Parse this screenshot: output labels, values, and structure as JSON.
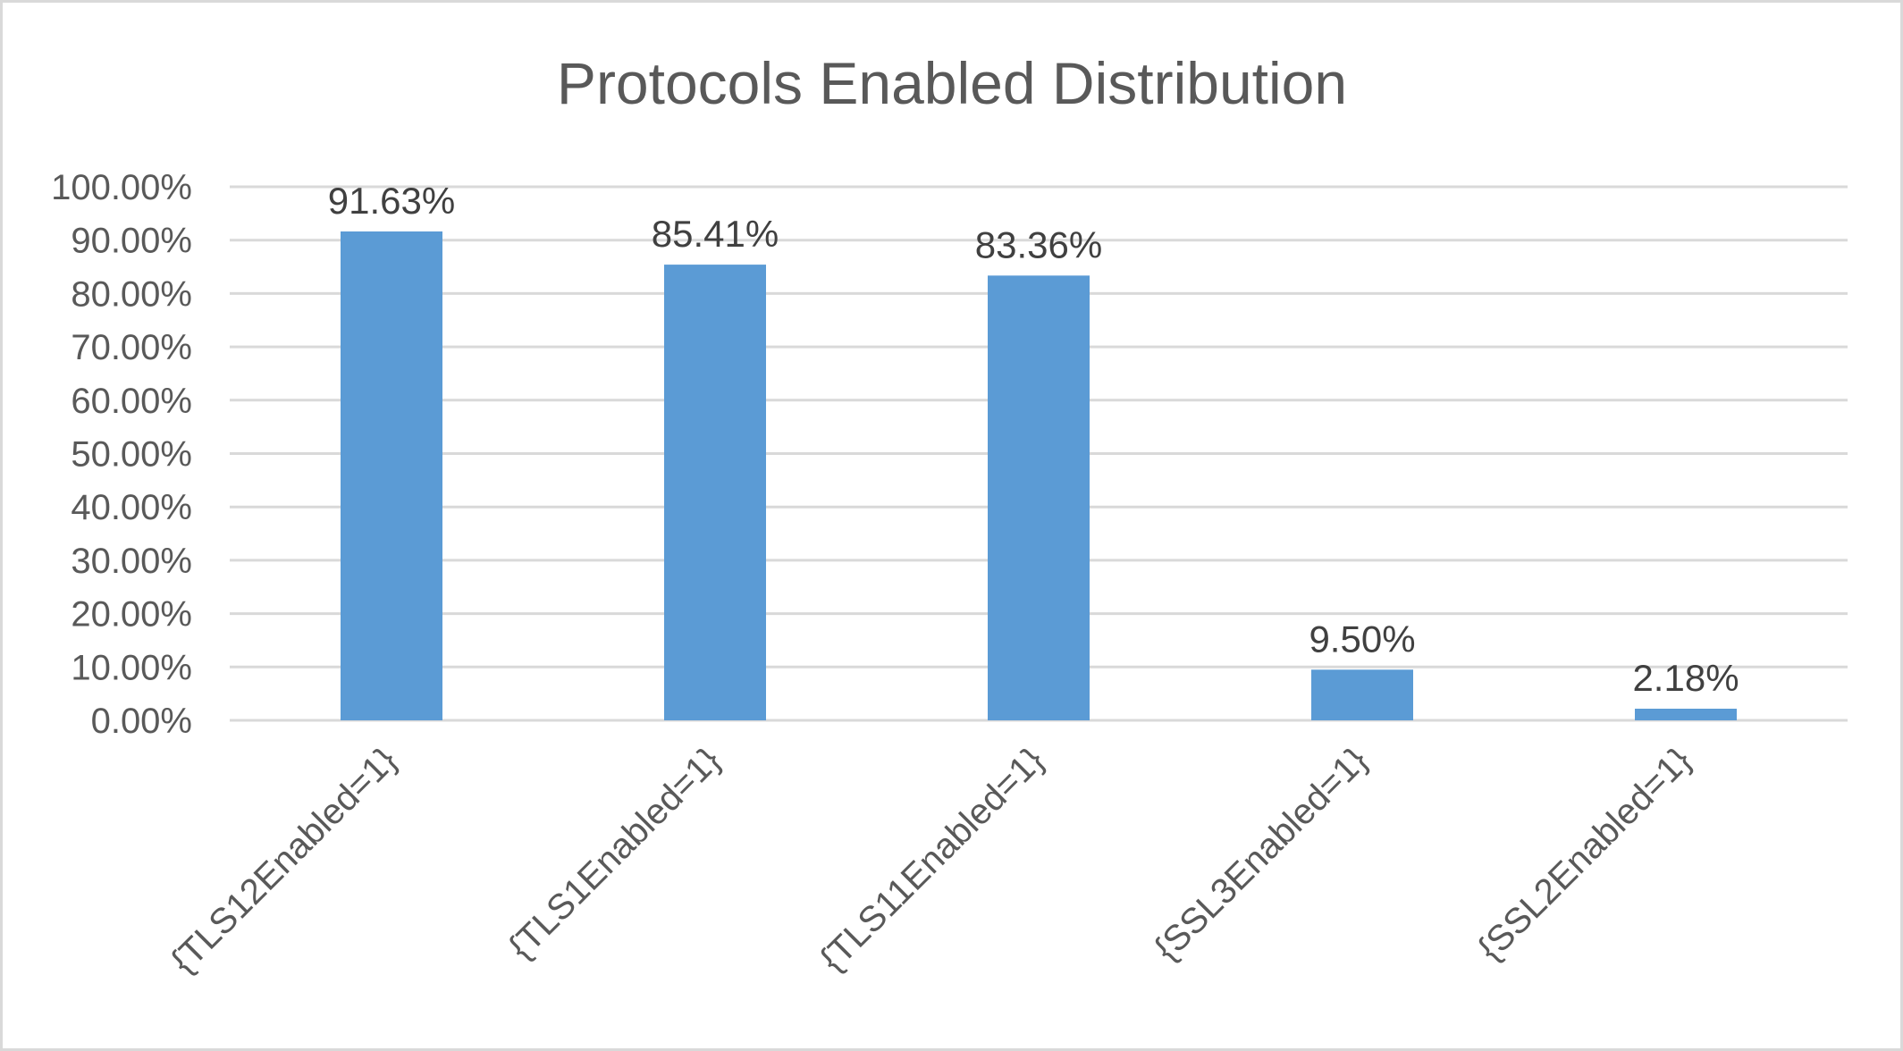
{
  "chart_data": {
    "type": "bar",
    "title": "Protocols Enabled Distribution",
    "categories": [
      "{TLS12Enabled=1}",
      "{TLS1Enabled=1}",
      "{TLS11Enabled=1}",
      "{SSL3Enabled=1}",
      "{SSL2Enabled=1}"
    ],
    "values": [
      91.63,
      85.41,
      83.36,
      9.5,
      2.18
    ],
    "data_labels": [
      "91.63%",
      "85.41%",
      "83.36%",
      "9.50%",
      "2.18%"
    ],
    "y_ticks": [
      "0.00%",
      "10.00%",
      "20.00%",
      "30.00%",
      "40.00%",
      "50.00%",
      "60.00%",
      "70.00%",
      "80.00%",
      "90.00%",
      "100.00%"
    ],
    "ylim": [
      0,
      100
    ],
    "y_step": 10,
    "grid": true,
    "legend": "none",
    "bar_color": "#5b9bd5"
  }
}
